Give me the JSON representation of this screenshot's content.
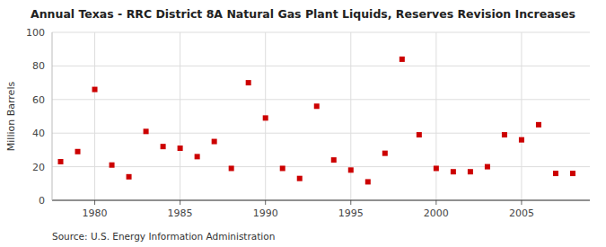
{
  "chart_data": {
    "type": "scatter",
    "title": "Annual Texas - RRC District 8A Natural Gas Plant Liquids, Reserves Revision Increases",
    "y_label": "Million Barrels",
    "annotations": [
      "Source: U.S. Energy Information Administration"
    ],
    "x": [
      1978,
      1979,
      1980,
      1981,
      1982,
      1983,
      1984,
      1985,
      1986,
      1987,
      1988,
      1989,
      1990,
      1991,
      1992,
      1993,
      1994,
      1995,
      1996,
      1997,
      1998,
      1999,
      2000,
      2001,
      2002,
      2003,
      2004,
      2005,
      2006,
      2007,
      2008
    ],
    "values": [
      23,
      29,
      66,
      21,
      14,
      41,
      32,
      31,
      26,
      35,
      19,
      70,
      49,
      19,
      13,
      56,
      24,
      18,
      11,
      28,
      84,
      39,
      19,
      17,
      17,
      20,
      39,
      36,
      45,
      16,
      16
    ],
    "color": "#cc0000",
    "marker": "square",
    "xlim": [
      1977.5,
      2009
    ],
    "ylim": [
      0,
      100
    ],
    "xticks": [
      1980,
      1985,
      1990,
      1995,
      2000,
      2005
    ],
    "yticks": [
      0,
      20,
      40,
      60,
      80,
      100
    ],
    "grid": true
  }
}
